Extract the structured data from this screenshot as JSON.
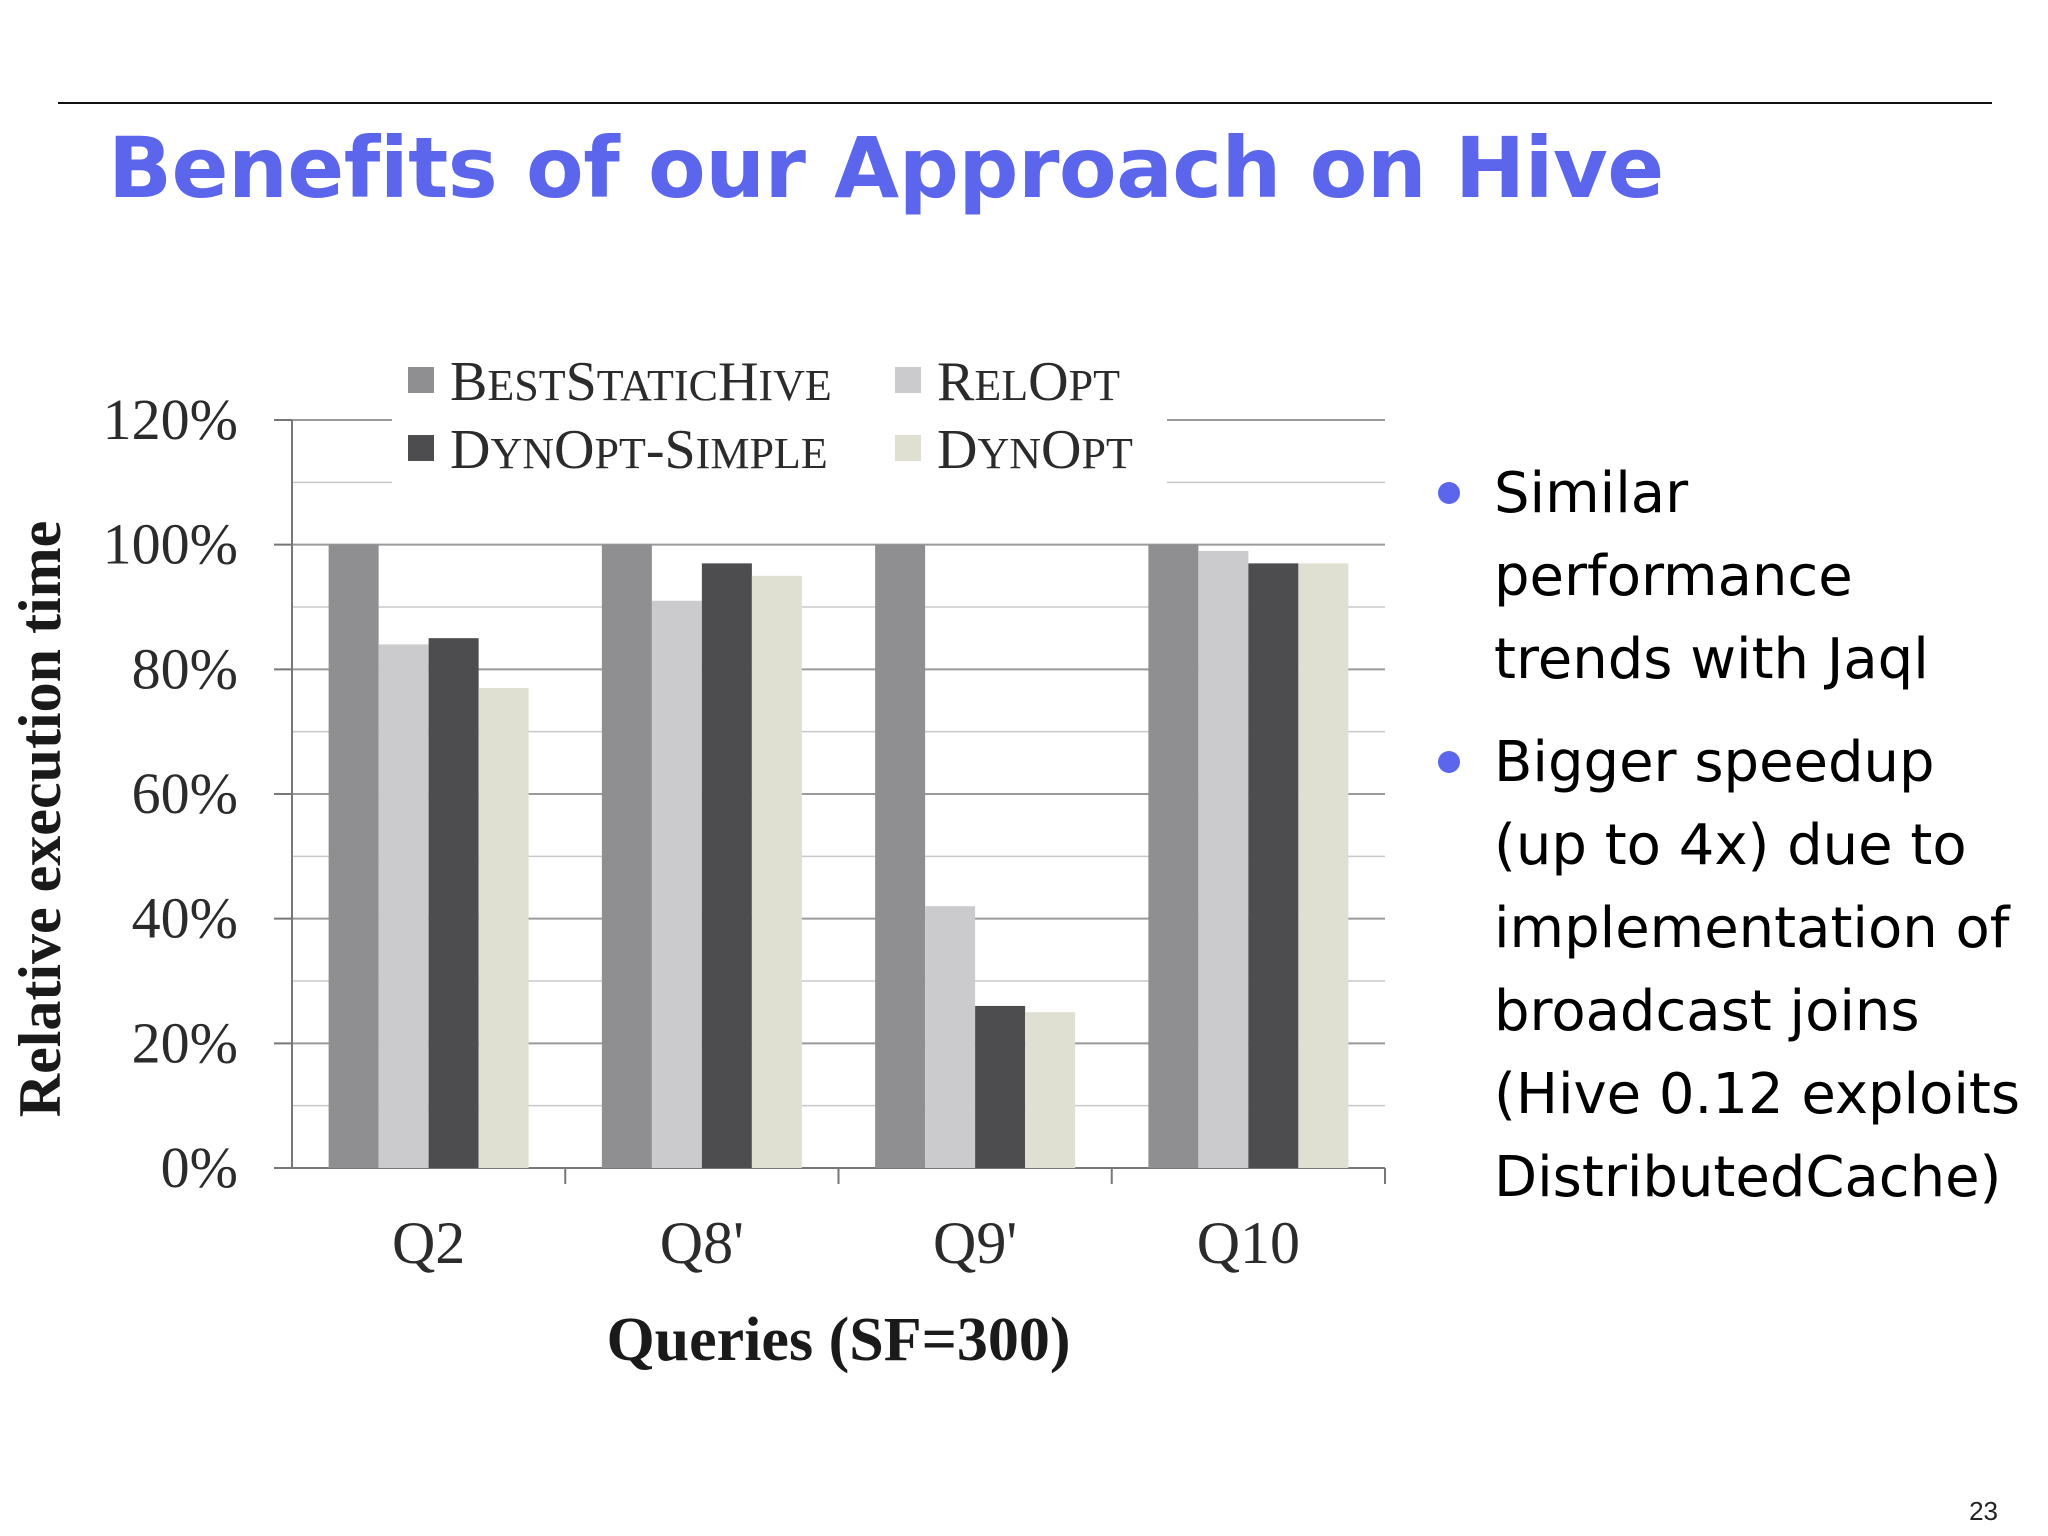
{
  "slide": {
    "title": "Benefits of our Approach on Hive",
    "page_number": "23",
    "accent_color": "#5b66ec"
  },
  "bullets": [
    "Similar performance trends with Jaql",
    "Bigger speedup (up to 4x) due to implementation of broadcast joins (Hive 0.12 exploits DistributedCache)"
  ],
  "chart_data": {
    "type": "bar",
    "xlabel": "Queries (SF=300)",
    "ylabel": "Relative execution time",
    "categories": [
      "Q2",
      "Q8'",
      "Q9'",
      "Q10"
    ],
    "ylim": [
      0,
      120
    ],
    "yticks": [
      0,
      20,
      40,
      60,
      80,
      100,
      120
    ],
    "ytick_labels": [
      "0%",
      "20%",
      "40%",
      "60%",
      "80%",
      "100%",
      "120%"
    ],
    "grid": true,
    "legend_position": "top",
    "series": [
      {
        "name": "BestStaticHive",
        "color": "#8f8f91",
        "values": [
          100,
          100,
          100,
          100
        ]
      },
      {
        "name": "RelOpt",
        "color": "#cbcbcd",
        "values": [
          84,
          91,
          42,
          99
        ]
      },
      {
        "name": "DynOpt-Simple",
        "color": "#4d4c4e",
        "values": [
          85,
          97,
          26,
          97
        ]
      },
      {
        "name": "DynOpt",
        "color": "#e0e0d2",
        "values": [
          77,
          95,
          25,
          97
        ]
      }
    ]
  }
}
